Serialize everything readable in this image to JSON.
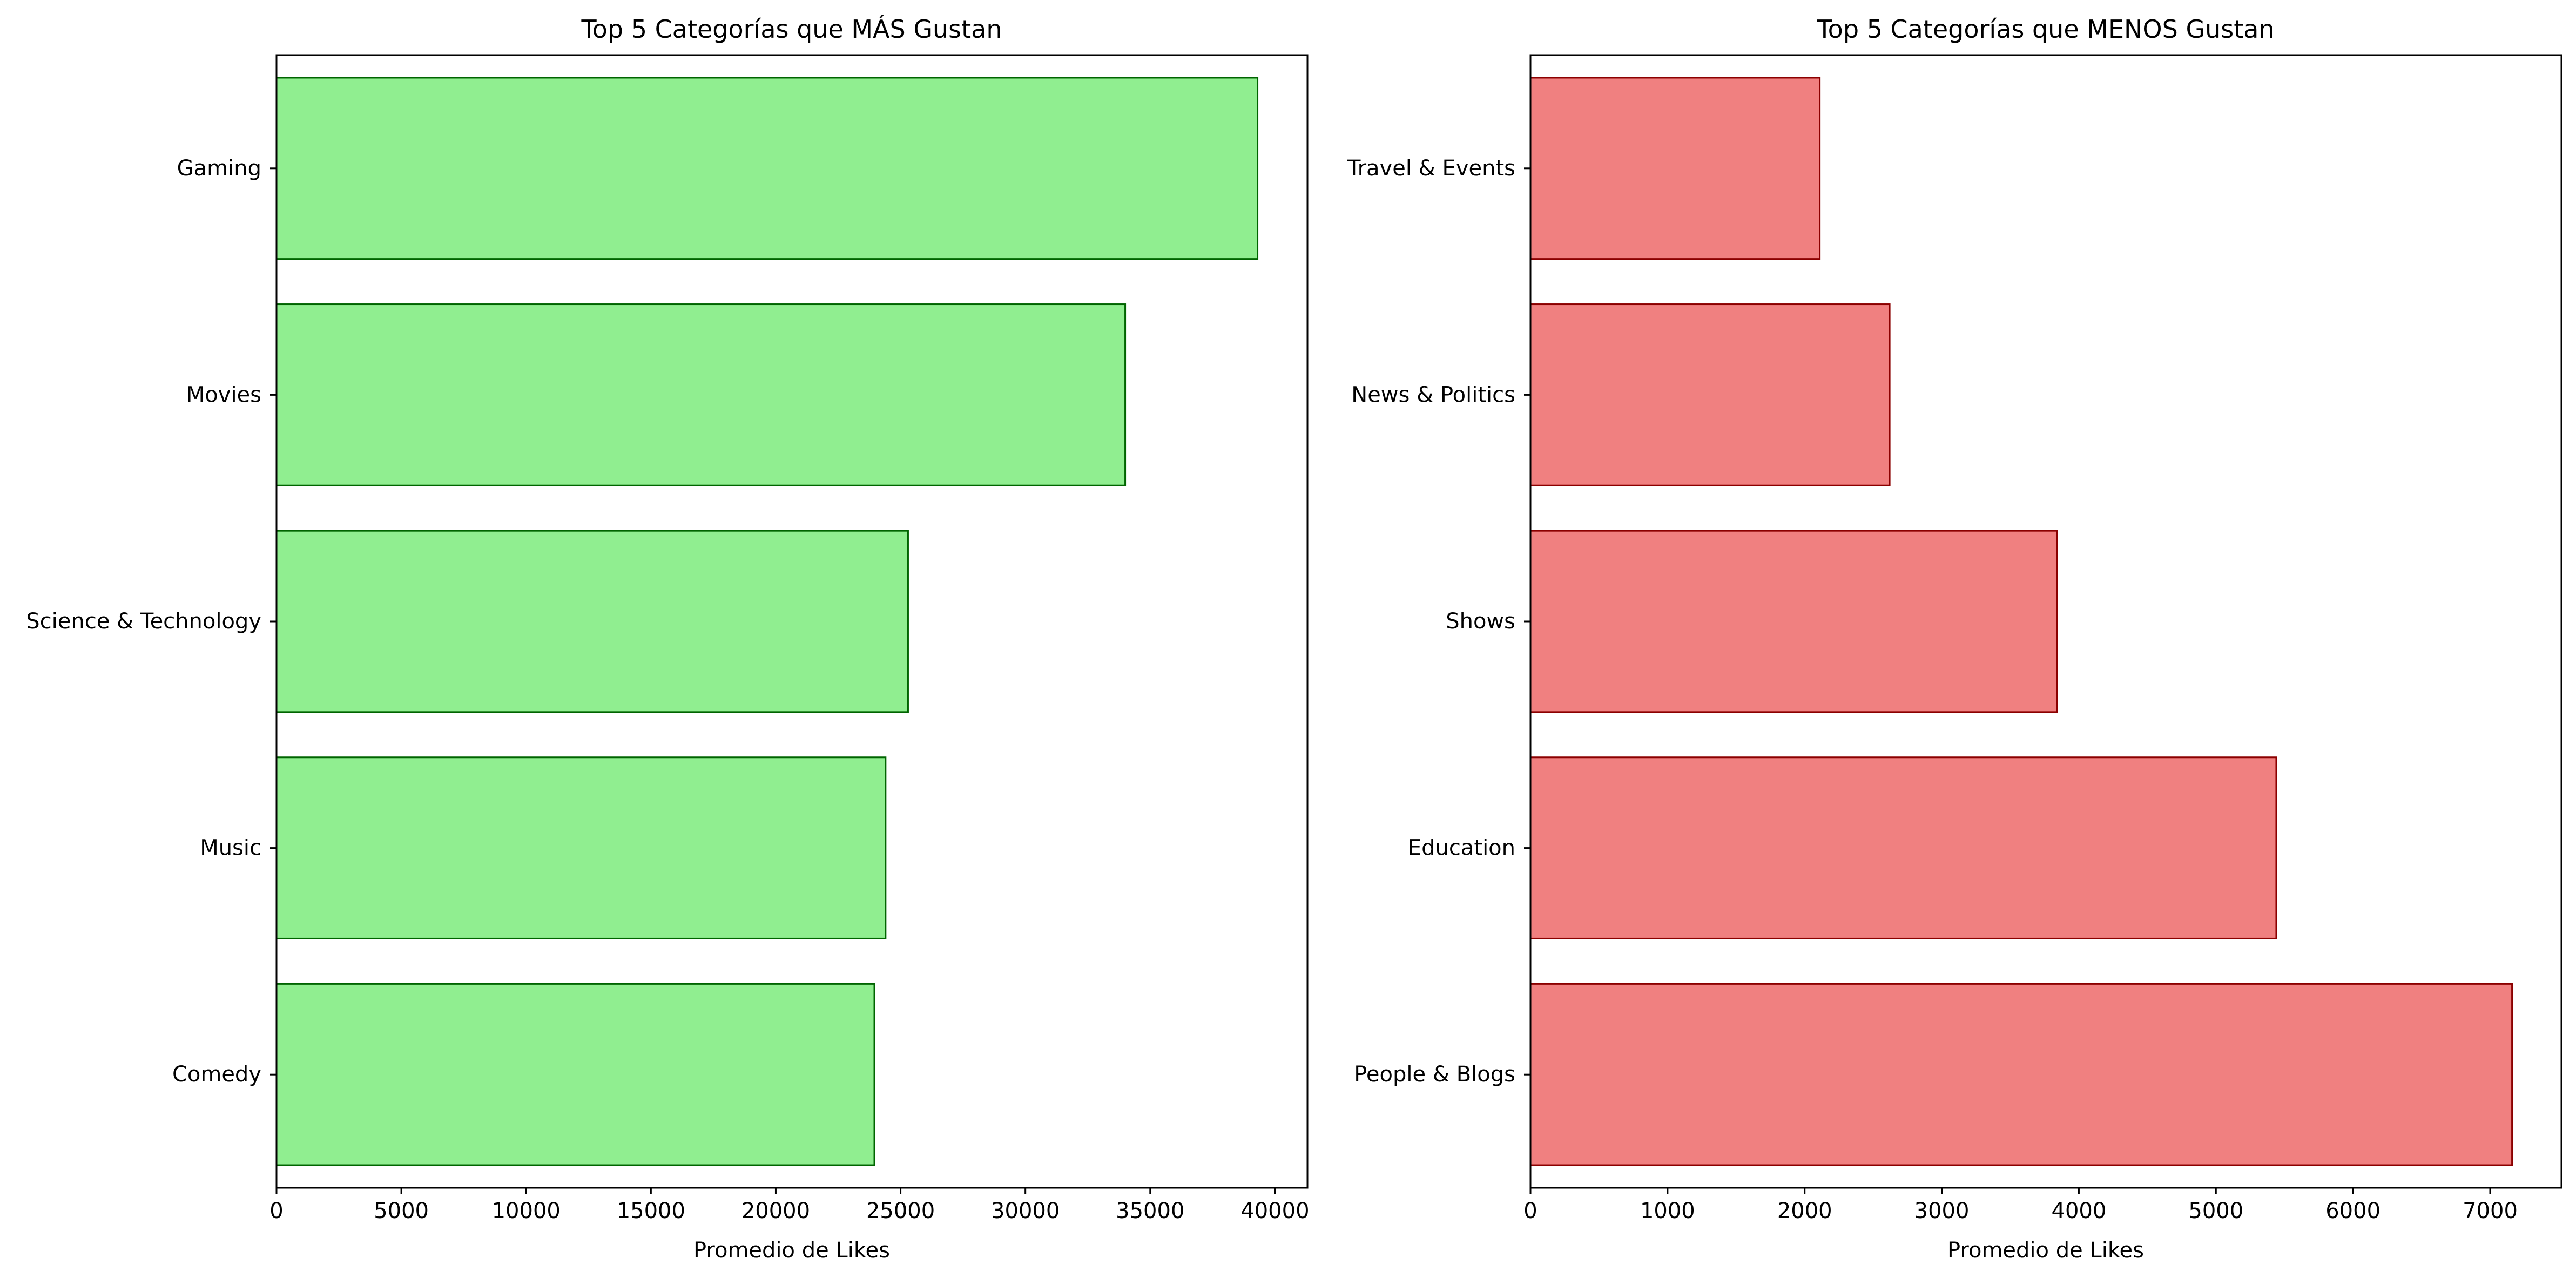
{
  "chart_data": [
    {
      "type": "bar",
      "orientation": "horizontal",
      "title": "Top 5 Categorías que MÁS Gustan",
      "xlabel": "Promedio de Likes",
      "ylabel": "",
      "categories": [
        "Gaming",
        "Movies",
        "Science & Technology",
        "Music",
        "Comedy"
      ],
      "values": [
        39300,
        34000,
        25300,
        24400,
        23950
      ],
      "xlim": [
        0,
        41300
      ],
      "xticks": [
        0,
        5000,
        10000,
        15000,
        20000,
        25000,
        30000,
        35000,
        40000
      ],
      "bar_color": "#90ee90",
      "edge_color": "#006400",
      "grid": false,
      "legend": "none"
    },
    {
      "type": "bar",
      "orientation": "horizontal",
      "title": "Top 5 Categorías que MENOS Gustan",
      "xlabel": "Promedio de Likes",
      "ylabel": "",
      "categories": [
        "Travel & Events",
        "News & Politics",
        "Shows",
        "Education",
        "People & Blogs"
      ],
      "values": [
        2110,
        2620,
        3840,
        5440,
        7160
      ],
      "xlim": [
        0,
        7520
      ],
      "xticks": [
        0,
        1000,
        2000,
        3000,
        4000,
        5000,
        6000,
        7000
      ],
      "bar_color": "#f08080",
      "edge_color": "#8b0000",
      "grid": false,
      "legend": "none"
    }
  ]
}
